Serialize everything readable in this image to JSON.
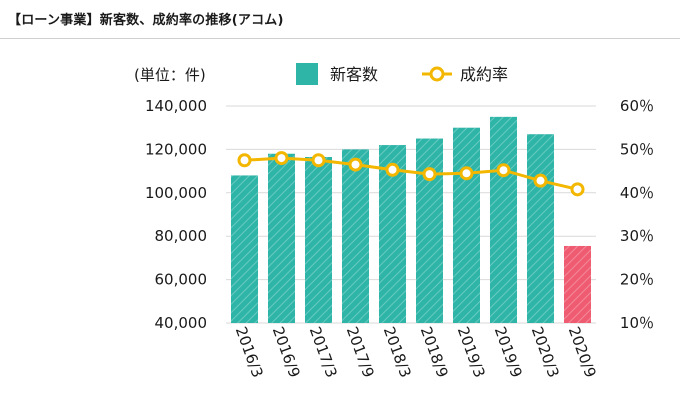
{
  "header": {
    "title": "【ローン事業】新客数、成約率の推移(アコム)"
  },
  "colors": {
    "bar": "#2fb5a8",
    "bar_highlight": "#ef5c72",
    "line": "#f3b700",
    "marker_fill": "#ffffff",
    "grid": "#d9d9d9"
  },
  "chart_data": {
    "type": "bar",
    "unit_label": "(単位：件)",
    "categories": [
      "2016/3",
      "2016/9",
      "2017/3",
      "2017/9",
      "2018/3",
      "2018/9",
      "2019/3",
      "2019/9",
      "2020/3",
      "2020/9"
    ],
    "series": [
      {
        "name": "新客数",
        "type": "bar",
        "axis": "left",
        "values": [
          108000,
          118000,
          116500,
          120000,
          122000,
          125000,
          130000,
          135000,
          127000,
          75500
        ]
      },
      {
        "name": "成約率",
        "type": "line",
        "axis": "right",
        "values": [
          47.5,
          48.0,
          47.5,
          46.5,
          45.3,
          44.3,
          44.5,
          45.2,
          42.8,
          40.8
        ]
      }
    ],
    "highlight_category": "2020/9",
    "ylim_left": [
      40000,
      140000
    ],
    "ylim_right": [
      10,
      60
    ],
    "yticks_left": [
      "40,000",
      "60,000",
      "80,000",
      "100,000",
      "120,000",
      "140,000"
    ],
    "yticks_right": [
      "10％",
      "20％",
      "30％",
      "40％",
      "50％",
      "60％"
    ],
    "grid": true,
    "legend_position": "top"
  }
}
